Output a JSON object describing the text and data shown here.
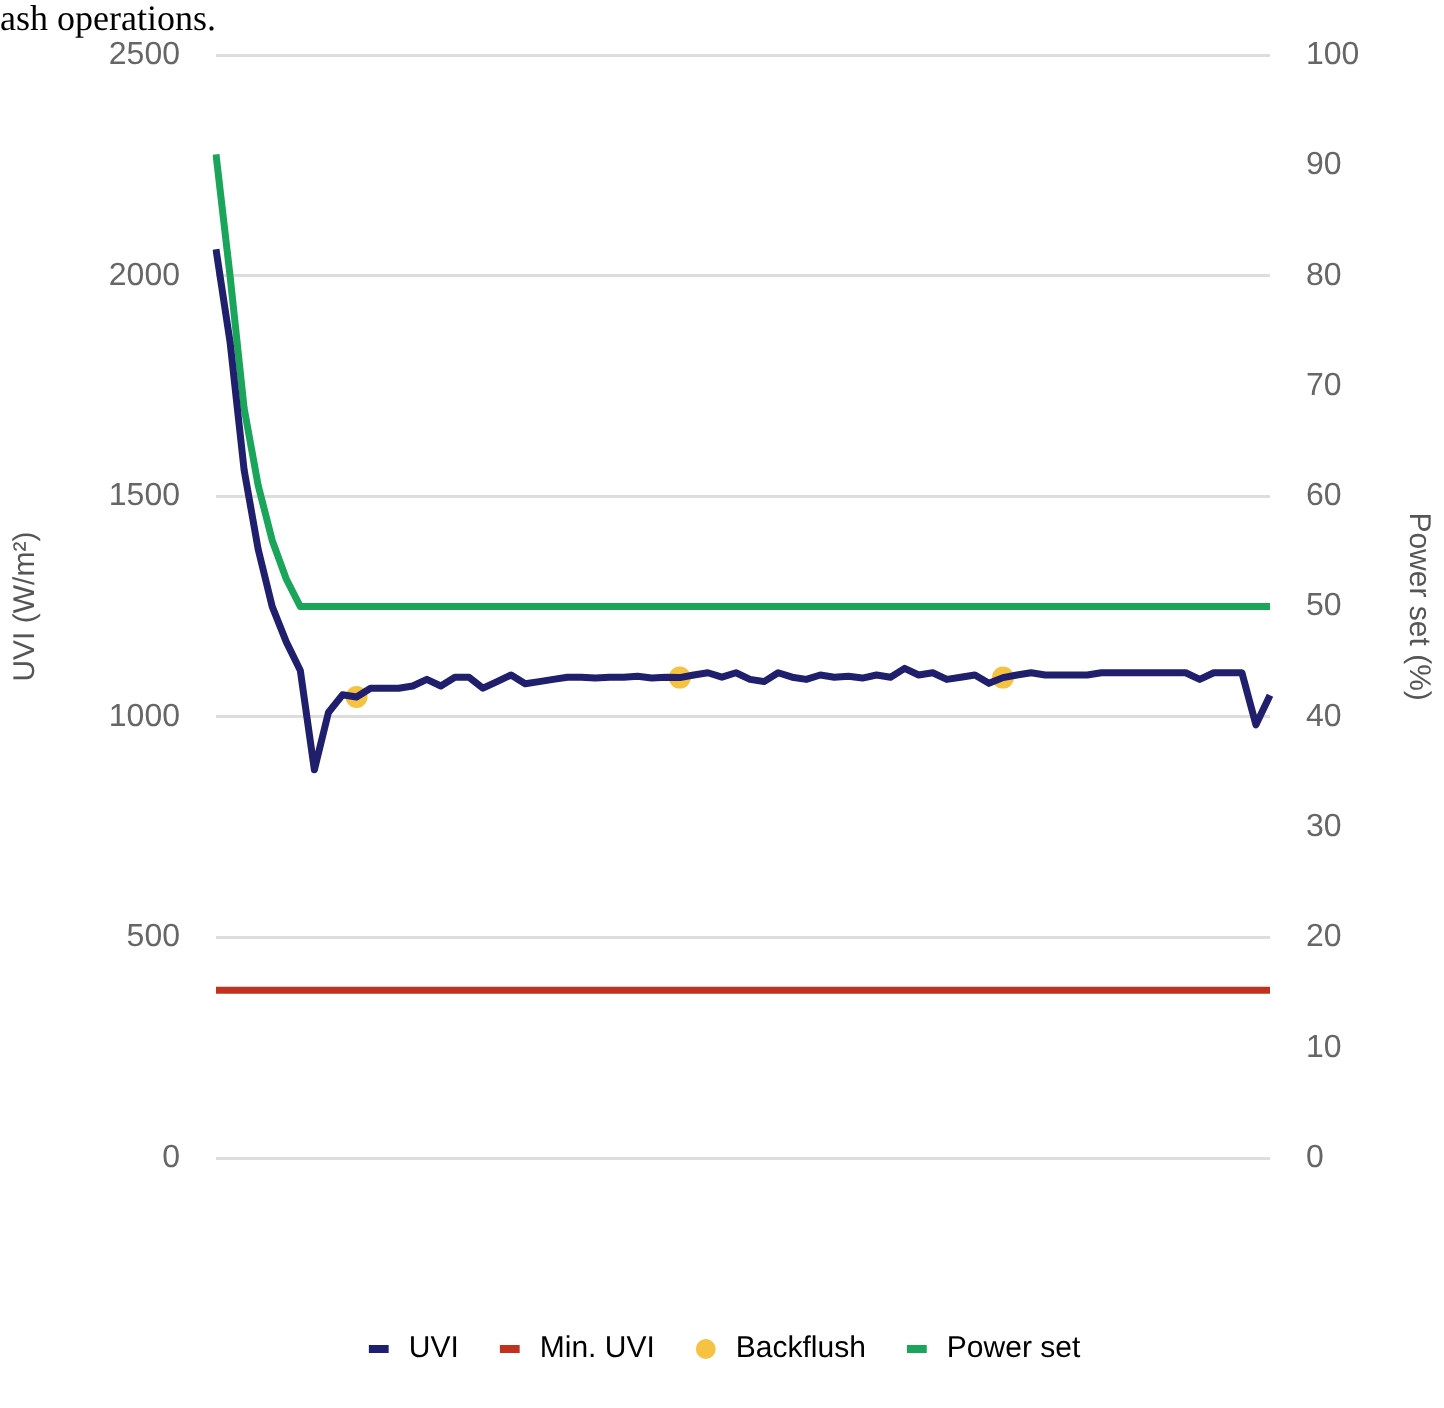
{
  "chart_data": {
    "type": "line",
    "ylabel": "UVI (W/m²)",
    "y2label": "Power set (%)",
    "annotations": [
      "ash operations."
    ],
    "categories": [
      null,
      null,
      null,
      null,
      null,
      null,
      null,
      null,
      null,
      null,
      null,
      null,
      null,
      null,
      null,
      null,
      null,
      null,
      null,
      null,
      null,
      null,
      null,
      null,
      null,
      null,
      null,
      null,
      null,
      null,
      null,
      null,
      null,
      null,
      null,
      null,
      null,
      null,
      null,
      null,
      null,
      null,
      null,
      null,
      null,
      null,
      null,
      null,
      null,
      null,
      null,
      null,
      null,
      null,
      null,
      null,
      null,
      null,
      null,
      null,
      null,
      null,
      null,
      null,
      null,
      null,
      null,
      null,
      null,
      null,
      null,
      null,
      null,
      null,
      null,
      null
    ],
    "ylim": [
      0,
      2500
    ],
    "yticks": [
      0,
      500,
      1000,
      1500,
      2000,
      2500
    ],
    "y2lim": [
      0,
      100
    ],
    "y2ticks": [
      0,
      10,
      20,
      30,
      40,
      50,
      60,
      70,
      80,
      90,
      100
    ],
    "grid": "y",
    "legend": "bottom",
    "marker": "none",
    "line_style": "solid",
    "series": [
      {
        "name": "UVI",
        "color": "#1f1f6e",
        "values": [
          2060,
          1850,
          1560,
          1380,
          1250,
          1170,
          1105,
          880,
          1010,
          1050,
          1045,
          1065,
          1065,
          1065,
          1070,
          1085,
          1070,
          1090,
          1090,
          1065,
          1080,
          1095,
          1075,
          1080,
          1085,
          1090,
          1090,
          1088,
          1090,
          1090,
          1092,
          1088,
          1090,
          1089,
          1095,
          1100,
          1090,
          1100,
          1085,
          1080,
          1100,
          1090,
          1085,
          1095,
          1090,
          1092,
          1088,
          1095,
          1090,
          1110,
          1095,
          1100,
          1085,
          1090,
          1095,
          1076,
          1089,
          1095,
          1100,
          1095,
          1095,
          1095,
          1095,
          1100,
          1100,
          1100,
          1100,
          1100,
          1100,
          1100,
          1085,
          1100,
          1100,
          1100,
          982,
          1049
        ]
      },
      {
        "name": "Min. UVI",
        "color": "#c0311f",
        "values": [
          380,
          380,
          380,
          380,
          380,
          380,
          380,
          380,
          380,
          380,
          380,
          380,
          380,
          380,
          380,
          380,
          380,
          380,
          380,
          380,
          380,
          380,
          380,
          380,
          380,
          380,
          380,
          380,
          380,
          380,
          380,
          380,
          380,
          380,
          380,
          380,
          380,
          380,
          380,
          380,
          380,
          380,
          380,
          380,
          380,
          380,
          380,
          380,
          380,
          380,
          380,
          380,
          380,
          380,
          380,
          380,
          380,
          380,
          380,
          380,
          380,
          380,
          380,
          380,
          380,
          380,
          380,
          380,
          380,
          380,
          380,
          380,
          380,
          380,
          380,
          380
        ]
      },
      {
        "name": "Backflush",
        "type": "scatter",
        "marker": "circle",
        "color": "#f5c242",
        "values": [
          null,
          null,
          null,
          null,
          null,
          null,
          null,
          null,
          null,
          null,
          1045,
          null,
          null,
          null,
          null,
          null,
          null,
          null,
          null,
          null,
          null,
          null,
          null,
          null,
          null,
          null,
          null,
          null,
          null,
          null,
          null,
          null,
          null,
          1089,
          null,
          null,
          null,
          null,
          null,
          null,
          null,
          null,
          null,
          null,
          null,
          null,
          null,
          null,
          null,
          null,
          null,
          null,
          null,
          null,
          null,
          null,
          1089,
          null,
          null,
          null,
          null,
          null,
          null,
          null,
          null,
          null,
          null,
          null,
          null,
          null,
          null,
          null,
          null,
          null,
          null,
          null
        ]
      },
      {
        "name": "Power set",
        "color": "#1aa55a",
        "axis": "y2",
        "values": [
          91,
          80,
          68,
          61,
          56,
          52.5,
          50,
          50,
          50,
          50,
          50,
          50,
          50,
          50,
          50,
          50,
          50,
          50,
          50,
          50,
          50,
          50,
          50,
          50,
          50,
          50,
          50,
          50,
          50,
          50,
          50,
          50,
          50,
          50,
          50,
          50,
          50,
          50,
          50,
          50,
          50,
          50,
          50,
          50,
          50,
          50,
          50,
          50,
          50,
          50,
          50,
          50,
          50,
          50,
          50,
          50,
          50,
          50,
          50,
          50,
          50,
          50,
          50,
          50,
          50,
          50,
          50,
          50,
          50,
          50,
          50,
          50,
          50,
          50,
          50,
          50
        ]
      }
    ]
  }
}
